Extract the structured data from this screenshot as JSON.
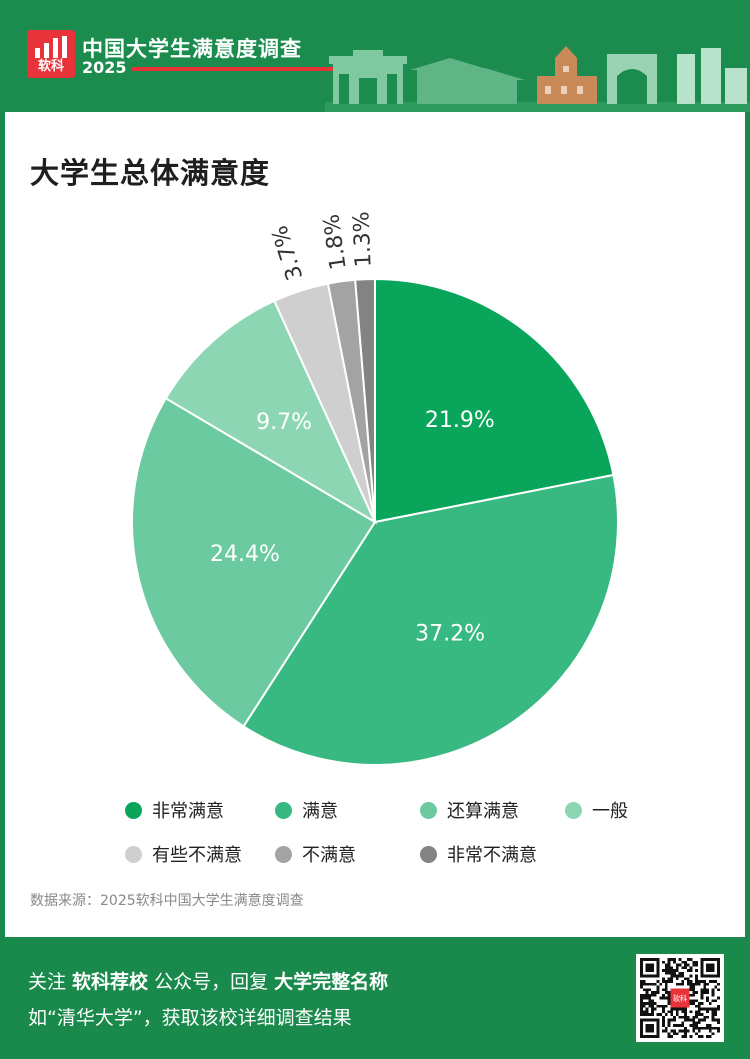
{
  "header": {
    "logo_text": "软科",
    "survey_title": "中国大学生满意度调查",
    "year": "2025"
  },
  "chart_data": {
    "type": "pie",
    "title": "大学生总体满意度",
    "categories": [
      "非常满意",
      "满意",
      "还算满意",
      "一般",
      "有些不满意",
      "不满意",
      "非常不满意"
    ],
    "values": [
      21.9,
      37.2,
      24.4,
      9.7,
      3.7,
      1.8,
      1.3
    ],
    "labels": [
      "21.9%",
      "37.2%",
      "24.4%",
      "9.7%",
      "3.7%",
      "1.8%",
      "1.3%"
    ],
    "colors": [
      "#08a55a",
      "#39b982",
      "#6ccaa0",
      "#8dd6b4",
      "#cfcfcf",
      "#a3a3a3",
      "#838383"
    ],
    "legend_position": "bottom"
  },
  "source": "数据来源：2025软科中国大学生满意度调查",
  "footer": {
    "line1_a": "关注 ",
    "line1_b": "软科荐校",
    "line1_c": " 公众号，回复 ",
    "line1_d": "大学完整名称",
    "line2": "如“清华大学”，获取该校详细调查结果",
    "qr_center_text": "软科"
  }
}
